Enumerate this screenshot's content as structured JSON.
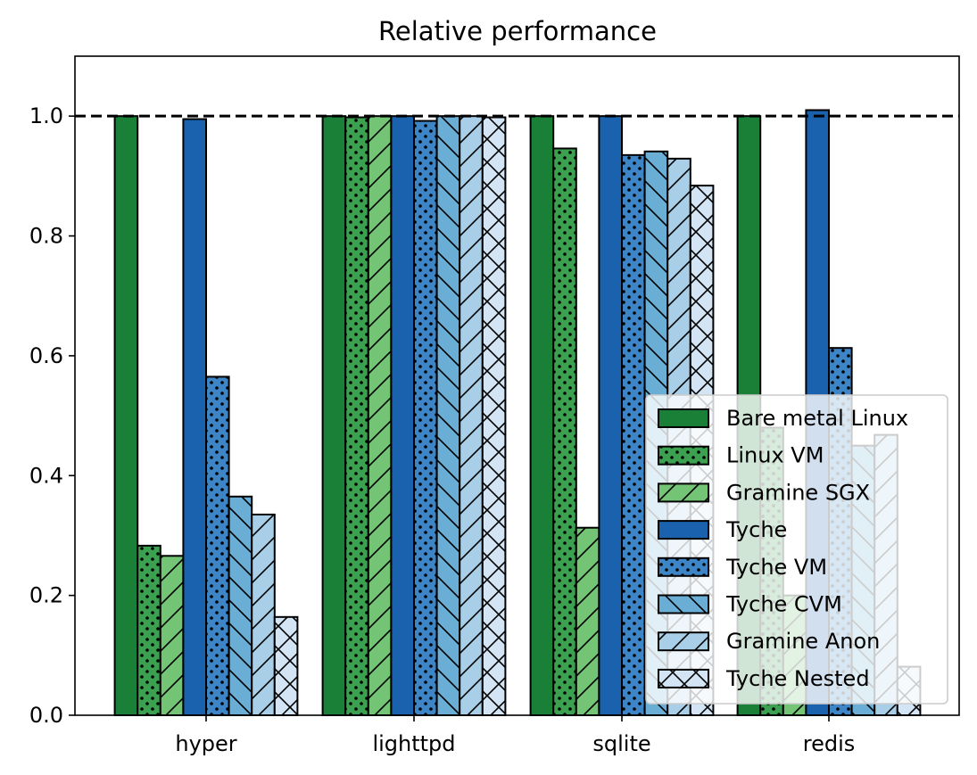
{
  "chart_data": {
    "type": "bar",
    "title": "Relative performance",
    "xlabel": "",
    "ylabel": "",
    "ylim": [
      0,
      1.1
    ],
    "yticks": [
      "0.0",
      "0.2",
      "0.4",
      "0.6",
      "0.8",
      "1.0"
    ],
    "reference_line": {
      "y": 1.0,
      "style": "dashed",
      "color": "#000000"
    },
    "grid": false,
    "legend_position": "lower-right",
    "categories": [
      "hyper",
      "lighttpd",
      "sqlite",
      "redis"
    ],
    "series": [
      {
        "name": "Bare metal Linux",
        "color": "#1a7f37",
        "pattern": "none",
        "values": [
          1.0,
          1.0,
          1.0,
          1.0
        ]
      },
      {
        "name": "Linux VM",
        "color": "#3ba150",
        "pattern": "dots",
        "values": [
          0.283,
          0.998,
          0.946,
          0.48
        ]
      },
      {
        "name": "Gramine SGX",
        "color": "#74c476",
        "pattern": "slash",
        "values": [
          0.266,
          1.0,
          0.313,
          0.2
        ]
      },
      {
        "name": "Tyche",
        "color": "#1a62ad",
        "pattern": "none",
        "values": [
          0.995,
          1.0,
          1.0,
          1.01
        ]
      },
      {
        "name": "Tyche VM",
        "color": "#3d85c6",
        "pattern": "dots",
        "values": [
          0.565,
          0.992,
          0.935,
          0.613
        ]
      },
      {
        "name": "Tyche CVM",
        "color": "#6aaed6",
        "pattern": "backslash",
        "values": [
          0.365,
          1.0,
          0.941,
          0.45
        ]
      },
      {
        "name": "Gramine Anon",
        "color": "#a9cfe8",
        "pattern": "slash",
        "values": [
          0.335,
          1.0,
          0.929,
          0.468
        ]
      },
      {
        "name": "Tyche Nested",
        "color": "#d3e5f5",
        "pattern": "cross",
        "values": [
          0.164,
          0.998,
          0.884,
          0.081
        ]
      }
    ]
  }
}
